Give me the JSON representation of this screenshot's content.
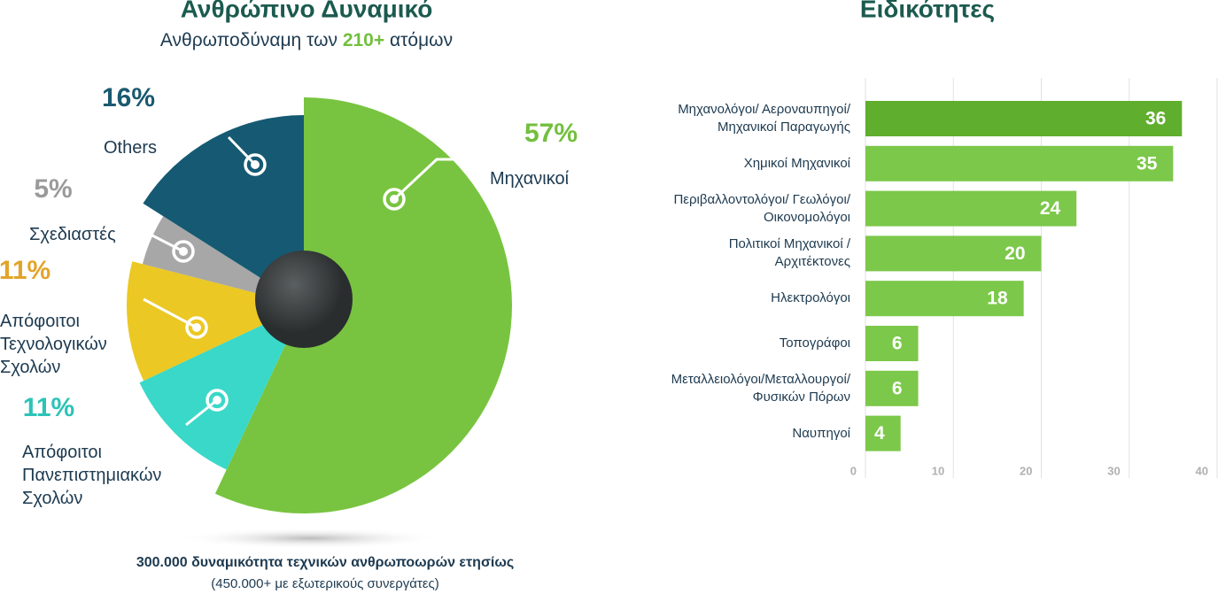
{
  "chart_data": [
    {
      "type": "pie",
      "title": "Ανθρώπινο Δυναμικό",
      "subtitle": [
        "Ανθρωποδύναμη των ",
        "210+",
        " ατόμων"
      ],
      "categories": [
        "Μηχανικοί",
        "Απόφοιτοι\nΠανεπιστημιακών\nΣχολών",
        "Απόφοιτοι\nΤεχνολογικών\nΣχολών",
        "Σχεδιαστές",
        "Others"
      ],
      "values": [
        57,
        11,
        11,
        5,
        16
      ],
      "value_labels": [
        "57%",
        "11%",
        "11%",
        "5%",
        "16%"
      ],
      "colors": [
        "#78c440",
        "#3ad8c9",
        "#ebc823",
        "#a7a7a7",
        "#155a72"
      ],
      "label_colors": [
        "#72bf3e",
        "#2cc3b6",
        "#e2a42a",
        "#9a9a9a",
        "#1a5a70"
      ],
      "annotations": [
        "300.000 δυναμικότητα τεχνικών ανθρωποωρών ετησίως",
        "(450.000+ με εξωτερικούς συνεργάτες)"
      ]
    },
    {
      "type": "barh",
      "title": "Ειδικότητες",
      "categories": [
        "Μηχανολόγοι/ Αεροναυπηγοί/\nΜηχανικοί Παραγωγής",
        "Χημικοί Μηχανικοί",
        "Περιβαλλοντολόγοι/ Γεωλόγοι/\nΟικονομολόγοι",
        "Πολιτικοί Μηχανικοί /\nΑρχιτέκτονες",
        "Ηλεκτρολόγοι",
        "Τοπογράφοι",
        "Μεταλλειολόγοι/Μεταλλουργοί/\nΦυσικών Πόρων",
        "Ναυπηγοί"
      ],
      "values": [
        36,
        35,
        24,
        20,
        18,
        6,
        6,
        4
      ],
      "colors": [
        "#5fae2e",
        "#7cc84a",
        "#7cc84a",
        "#7cc84a",
        "#7cc84a",
        "#7cc84a",
        "#7cc84a",
        "#7cc84a"
      ],
      "xlim": [
        0,
        40
      ],
      "xticks": [
        0,
        10,
        20,
        30,
        40
      ],
      "grid": true
    }
  ]
}
